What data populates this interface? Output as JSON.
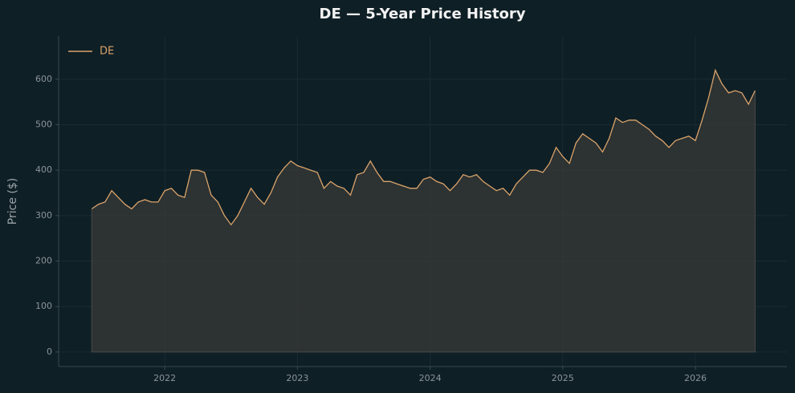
{
  "chart_data": {
    "type": "line",
    "title": "DE — 5-Year Price History",
    "ylabel": "Price ($)",
    "x": [
      2021.45,
      2021.5,
      2021.55,
      2021.6,
      2021.65,
      2021.7,
      2021.75,
      2021.8,
      2021.85,
      2021.9,
      2021.95,
      2022.0,
      2022.05,
      2022.1,
      2022.15,
      2022.2,
      2022.25,
      2022.3,
      2022.35,
      2022.4,
      2022.45,
      2022.5,
      2022.55,
      2022.6,
      2022.65,
      2022.7,
      2022.75,
      2022.8,
      2022.85,
      2022.9,
      2022.95,
      2023.0,
      2023.05,
      2023.1,
      2023.15,
      2023.2,
      2023.25,
      2023.3,
      2023.35,
      2023.4,
      2023.45,
      2023.5,
      2023.55,
      2023.6,
      2023.65,
      2023.7,
      2023.75,
      2023.8,
      2023.85,
      2023.9,
      2023.95,
      2024.0,
      2024.05,
      2024.1,
      2024.15,
      2024.2,
      2024.25,
      2024.3,
      2024.35,
      2024.4,
      2024.45,
      2024.5,
      2024.55,
      2024.6,
      2024.65,
      2024.7,
      2024.75,
      2024.8,
      2024.85,
      2024.9,
      2024.95,
      2025.0,
      2025.05,
      2025.1,
      2025.15,
      2025.2,
      2025.25,
      2025.3,
      2025.35,
      2025.4,
      2025.45,
      2025.5,
      2025.55,
      2025.6,
      2025.65,
      2025.7,
      2025.75,
      2025.8,
      2025.85,
      2025.9,
      2025.95,
      2026.0,
      2026.05,
      2026.1,
      2026.15,
      2026.2,
      2026.25,
      2026.3,
      2026.35,
      2026.4,
      2026.45
    ],
    "series": [
      {
        "name": "DE",
        "color": "#d9a36a",
        "values": [
          315,
          325,
          330,
          355,
          340,
          325,
          315,
          330,
          335,
          330,
          330,
          355,
          360,
          345,
          340,
          400,
          400,
          395,
          345,
          330,
          300,
          280,
          300,
          330,
          360,
          340,
          325,
          350,
          385,
          405,
          420,
          410,
          405,
          400,
          395,
          360,
          375,
          365,
          360,
          345,
          390,
          395,
          420,
          395,
          375,
          375,
          370,
          365,
          360,
          360,
          380,
          385,
          375,
          370,
          355,
          370,
          390,
          385,
          390,
          375,
          365,
          355,
          360,
          345,
          370,
          385,
          400,
          400,
          395,
          415,
          450,
          430,
          415,
          460,
          480,
          470,
          460,
          440,
          470,
          515,
          505,
          510,
          510,
          500,
          490,
          475,
          465,
          450,
          465,
          470,
          475,
          465,
          510,
          560,
          620,
          590,
          570,
          575,
          570,
          545,
          575
        ]
      }
    ],
    "xlim": [
      2021.2,
      2026.69
    ],
    "ylim": [
      -32,
      695
    ],
    "xticks": [
      2022,
      2023,
      2024,
      2025,
      2026
    ],
    "yticks": [
      0,
      100,
      200,
      300,
      400,
      500,
      600
    ],
    "grid": true,
    "fill": true,
    "legend": "upper left"
  }
}
